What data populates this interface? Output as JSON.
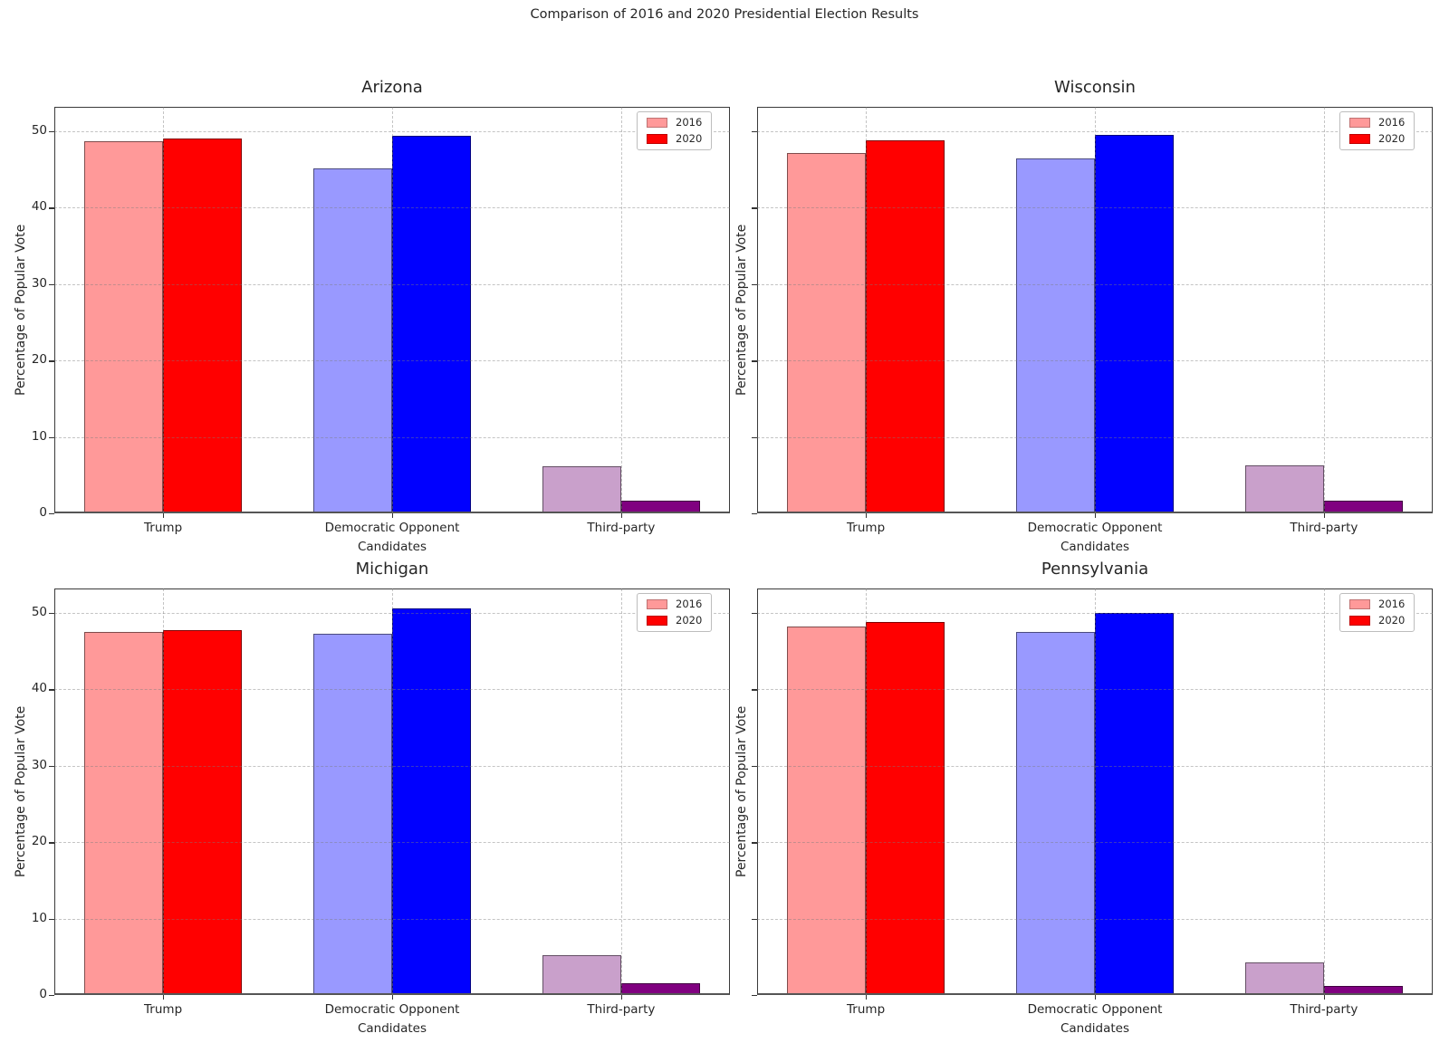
{
  "suptitle": "Comparison of 2016 and 2020 Presidential Election Results",
  "legend": {
    "entries": [
      {
        "label": "2016",
        "color": "#ff9999"
      },
      {
        "label": "2020",
        "color": "#ff0000"
      }
    ]
  },
  "axes_shared": {
    "ylabel": "Percentage of Popular Vote",
    "xlabel": "Candidates",
    "categories": [
      "Trump",
      "Democratic Opponent",
      "Third-party"
    ],
    "yticks": [
      "0",
      "10",
      "20",
      "30",
      "40",
      "50"
    ],
    "ylim": [
      0,
      53.2
    ],
    "grid": "dashed, drawn over bars"
  },
  "series_colors": {
    "y2016": [
      "#ff9999",
      "#9999ff",
      "#c9a0cb"
    ],
    "y2020": [
      "#ff0000",
      "#0000ff",
      "#800080"
    ]
  },
  "chart_data": [
    {
      "type": "bar",
      "title": "Arizona",
      "categories": [
        "Trump",
        "Democratic Opponent",
        "Third-party"
      ],
      "series": [
        {
          "name": "2016",
          "values": [
            48.7,
            45.1,
            6.2
          ]
        },
        {
          "name": "2020",
          "values": [
            49.1,
            49.4,
            1.6
          ]
        }
      ],
      "xlabel": "Candidates",
      "ylabel": "Percentage of Popular Vote",
      "ylim": [
        0,
        53.2
      ],
      "ytick_labels_visible": true,
      "legend_position": "upper right"
    },
    {
      "type": "bar",
      "title": "Wisconsin",
      "categories": [
        "Trump",
        "Democratic Opponent",
        "Third-party"
      ],
      "series": [
        {
          "name": "2016",
          "values": [
            47.2,
            46.5,
            6.3
          ]
        },
        {
          "name": "2020",
          "values": [
            48.8,
            49.5,
            1.7
          ]
        }
      ],
      "xlabel": "Candidates",
      "ylabel": "Percentage of Popular Vote",
      "ylim": [
        0,
        53.2
      ],
      "ytick_labels_visible": false,
      "legend_position": "upper right"
    },
    {
      "type": "bar",
      "title": "Michigan",
      "categories": [
        "Trump",
        "Democratic Opponent",
        "Third-party"
      ],
      "series": [
        {
          "name": "2016",
          "values": [
            47.5,
            47.3,
            5.2
          ]
        },
        {
          "name": "2020",
          "values": [
            47.8,
            50.6,
            1.5
          ]
        }
      ],
      "xlabel": "Candidates",
      "ylabel": "Percentage of Popular Vote",
      "ylim": [
        0,
        53.2
      ],
      "ytick_labels_visible": true,
      "legend_position": "upper right"
    },
    {
      "type": "bar",
      "title": "Pennsylvania",
      "categories": [
        "Trump",
        "Democratic Opponent",
        "Third-party"
      ],
      "series": [
        {
          "name": "2016",
          "values": [
            48.2,
            47.5,
            4.3
          ]
        },
        {
          "name": "2020",
          "values": [
            48.8,
            50.0,
            1.2
          ]
        }
      ],
      "xlabel": "Candidates",
      "ylabel": "Percentage of Popular Vote",
      "ylim": [
        0,
        53.2
      ],
      "ytick_labels_visible": false,
      "legend_position": "upper right"
    }
  ]
}
